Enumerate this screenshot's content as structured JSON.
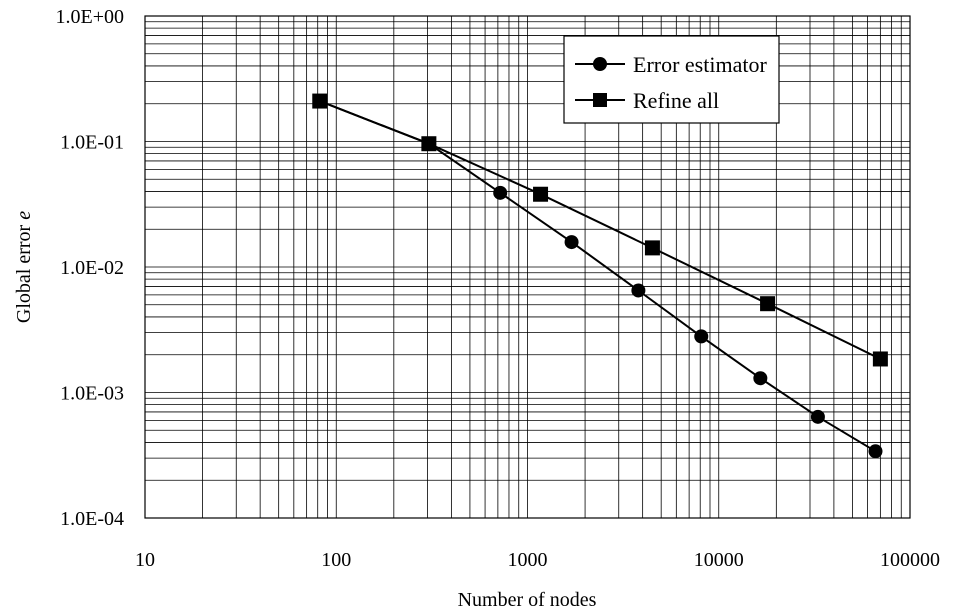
{
  "chart_data": {
    "type": "line",
    "xscale": "log",
    "yscale": "log",
    "xlim": [
      10,
      100000
    ],
    "ylim": [
      0.0001,
      1
    ],
    "x_ticks": [
      "10",
      "100",
      "1000",
      "10000",
      "100000"
    ],
    "y_ticks": [
      "1.0E+00",
      "1.0E-01",
      "1.0E-02",
      "1.0E-03",
      "1.0E-04"
    ],
    "xlabel": "Number of nodes",
    "ylabel_prefix": "Global error ",
    "ylabel_symbol": "e",
    "grid": "major and minor",
    "legend_position": "top-right",
    "series": [
      {
        "name": "Error estimator",
        "marker": "circle",
        "x": [
          82,
          305,
          720,
          1700,
          3800,
          8100,
          16500,
          33000,
          66000
        ],
        "y": [
          0.21,
          0.096,
          0.039,
          0.0158,
          0.0065,
          0.0028,
          0.0013,
          0.00064,
          0.00034
        ]
      },
      {
        "name": "Refine all",
        "marker": "square",
        "x": [
          82,
          305,
          1170,
          4500,
          18000,
          70000
        ],
        "y": [
          0.21,
          0.096,
          0.038,
          0.0142,
          0.0051,
          0.00185
        ]
      }
    ]
  }
}
